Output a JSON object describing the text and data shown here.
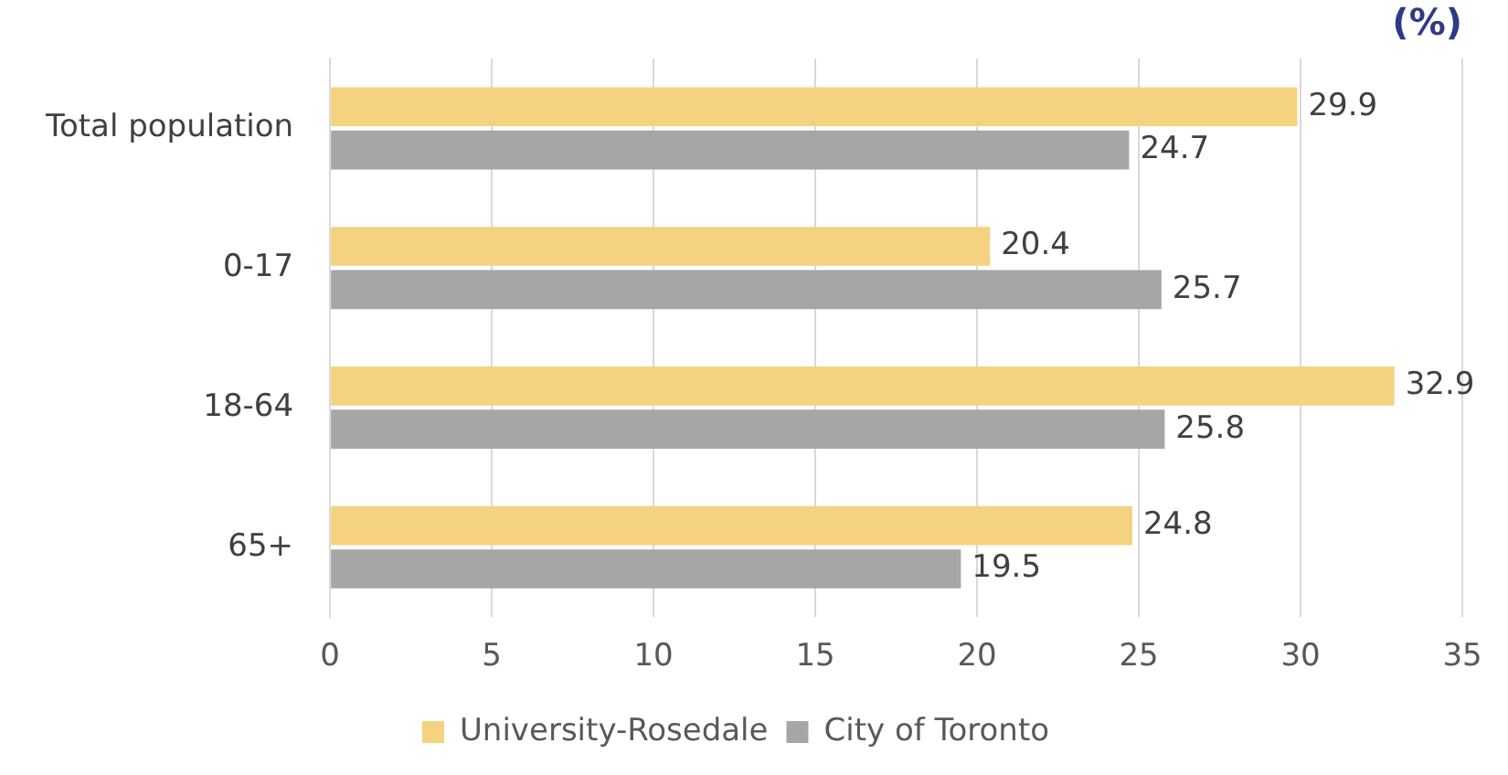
{
  "chart_data": {
    "type": "bar",
    "orientation": "horizontal",
    "title": "(%)",
    "categories": [
      "Total population",
      "0-17",
      "18-64",
      "65+"
    ],
    "series": [
      {
        "name": "University-Rosedale",
        "color": "#f5d27f",
        "values": [
          29.9,
          20.4,
          32.9,
          24.8
        ]
      },
      {
        "name": "City of Toronto",
        "color": "#a6a6a6",
        "values": [
          24.7,
          25.7,
          25.8,
          19.5
        ]
      }
    ],
    "xlim": [
      0,
      35
    ],
    "xticks": [
      0,
      5,
      10,
      15,
      20,
      25,
      30,
      35
    ],
    "grid": "x",
    "legend": "bottom",
    "data_labels": true
  }
}
